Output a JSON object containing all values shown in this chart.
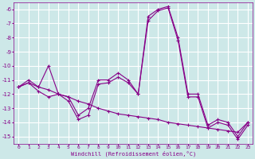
{
  "xlabel": "Windchill (Refroidissement éolien,°C)",
  "background_color": "#cde8e8",
  "grid_color": "#ffffff",
  "line_color": "#880088",
  "xlim": [
    -0.5,
    23.5
  ],
  "ylim": [
    -15.5,
    -5.5
  ],
  "yticks": [
    -15,
    -14,
    -13,
    -12,
    -11,
    -10,
    -9,
    -8,
    -7,
    -6
  ],
  "xticks": [
    0,
    1,
    2,
    3,
    4,
    5,
    6,
    7,
    8,
    9,
    10,
    11,
    12,
    13,
    14,
    15,
    16,
    17,
    18,
    19,
    20,
    21,
    22,
    23
  ],
  "line1_x": [
    0,
    1,
    2,
    3,
    4,
    5,
    6,
    7,
    8,
    9,
    10,
    11,
    12,
    13,
    14,
    15,
    16,
    17,
    18,
    19,
    20,
    21,
    22,
    23
  ],
  "line1_y": [
    -11.5,
    -11.0,
    -11.5,
    -10.0,
    -12.0,
    -12.2,
    -13.5,
    -13.0,
    -11.0,
    -11.0,
    -10.5,
    -11.0,
    -12.0,
    -6.5,
    -6.0,
    -5.8,
    -8.0,
    -12.0,
    -12.0,
    -14.2,
    -13.8,
    -14.0,
    -15.0,
    -14.0
  ],
  "line2_x": [
    0,
    1,
    2,
    3,
    4,
    5,
    6,
    7,
    8,
    9,
    10,
    11,
    12,
    13,
    14,
    15,
    16,
    17,
    18,
    19,
    20,
    21,
    22,
    23
  ],
  "line2_y": [
    -11.5,
    -11.2,
    -11.5,
    -11.7,
    -12.0,
    -12.2,
    -12.5,
    -12.7,
    -13.0,
    -13.2,
    -13.4,
    -13.5,
    -13.6,
    -13.7,
    -13.8,
    -14.0,
    -14.1,
    -14.2,
    -14.3,
    -14.4,
    -14.5,
    -14.6,
    -14.7,
    -14.0
  ],
  "line3_x": [
    0,
    1,
    2,
    3,
    4,
    5,
    6,
    7,
    8,
    9,
    10,
    11,
    12,
    13,
    14,
    15,
    16,
    17,
    18,
    19,
    20,
    21,
    22,
    23
  ],
  "line3_y": [
    -11.5,
    -11.2,
    -11.8,
    -12.2,
    -12.0,
    -12.5,
    -13.8,
    -13.5,
    -11.3,
    -11.2,
    -10.8,
    -11.2,
    -12.0,
    -6.8,
    -6.1,
    -5.9,
    -8.2,
    -12.2,
    -12.2,
    -14.4,
    -14.0,
    -14.2,
    -15.2,
    -14.2
  ],
  "tick_fontsize": 4.5,
  "xlabel_fontsize": 5.0,
  "tick_color": "#880088",
  "spine_color": "#880088"
}
